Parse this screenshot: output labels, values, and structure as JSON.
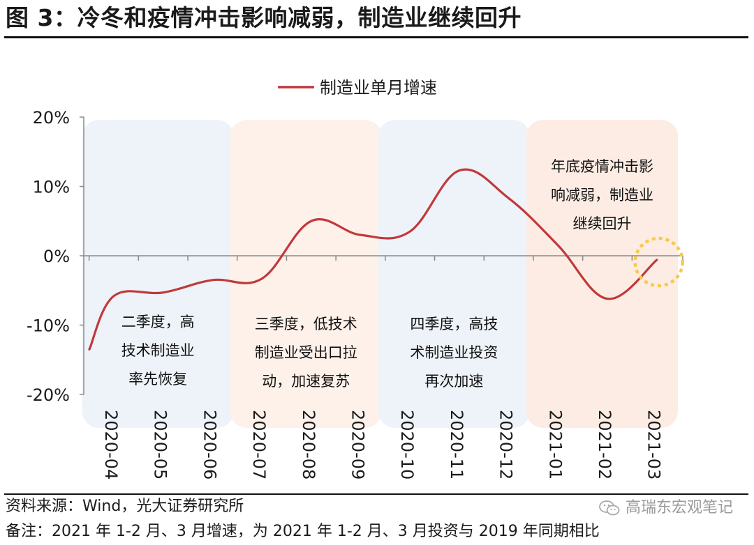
{
  "title": "图 3：冷冬和疫情冲击影响减弱，制造业继续回升",
  "source": "资料来源：Wind，光大证券研究所",
  "note": "备注：2021 年 1-2 月、3 月增速，为 2021 年 1-2 月、3 月投资与 2019 年同期相比",
  "watermark": "高瑞东宏观笔记",
  "chart_data": {
    "type": "line",
    "categories": [
      "2020-04",
      "2020-05",
      "2020-06",
      "2020-07",
      "2020-08",
      "2020-09",
      "2020-10",
      "2020-11",
      "2020-12",
      "2021-01",
      "2021-02",
      "2021-03"
    ],
    "series": [
      {
        "name": "制造业单月增速",
        "color": "#c0393b",
        "values": [
          -5.8,
          -5.3,
          -3.5,
          -3.3,
          5.0,
          3.0,
          3.5,
          12.3,
          8.3,
          1.5,
          -6.2,
          -0.6
        ],
        "start_value": -13.5
      }
    ],
    "ylim": [
      -20,
      20
    ],
    "yticks": [
      -20,
      -10,
      0,
      10,
      20
    ],
    "yticklabels": [
      "-20%",
      "-10%",
      "0%",
      "10%",
      "20%"
    ],
    "legend_position": "top-center",
    "grid": false,
    "shaded_regions": [
      {
        "from": "2020-04",
        "to": "2020-06",
        "color": "#eef3f9",
        "label_lines": [
          "二季度，高",
          "技术制造业",
          "率先恢复"
        ]
      },
      {
        "from": "2020-07",
        "to": "2020-09",
        "color": "#fdf1ea",
        "label_lines": [
          "三季度，低技术",
          "制造业受出口拉",
          "动，加速复苏"
        ]
      },
      {
        "from": "2020-10",
        "to": "2020-12",
        "color": "#eef3f9",
        "label_lines": [
          "四季度，高技",
          "术制造业投资",
          "再次加速"
        ]
      },
      {
        "from": "2021-01",
        "to": "2021-03",
        "color": "#fdece3",
        "label_lines": [
          "年底疫情冲击影",
          "响减弱，制造业",
          "继续回升"
        ]
      }
    ],
    "highlight": {
      "category": "2021-03",
      "color": "#f7c948"
    }
  }
}
